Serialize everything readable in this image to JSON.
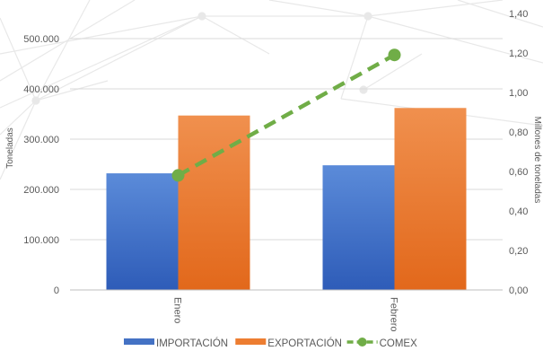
{
  "chart_data": {
    "type": "bar",
    "categories": [
      "Enero",
      "Febrero"
    ],
    "series": [
      {
        "name": "IMPORTACIÓN",
        "type": "bar",
        "axis": "left",
        "values": [
          232000,
          248000
        ],
        "color": "#4472C4"
      },
      {
        "name": "EXPORTACIÓN",
        "type": "bar",
        "axis": "left",
        "values": [
          347000,
          362000
        ],
        "color": "#ED7D31"
      },
      {
        "name": "COMEX",
        "type": "line",
        "axis": "right",
        "values": [
          0.58,
          1.19
        ],
        "color": "#70AD47",
        "line_style": "dashed"
      }
    ],
    "ylabel": "Toneladas",
    "y2label": "Millones de toneladas",
    "ylim": [
      0,
      500000
    ],
    "y_ticks": [
      "0",
      "100.000",
      "200.000",
      "300.000",
      "400.000",
      "500.000"
    ],
    "y2lim": [
      0,
      1.4
    ],
    "y2_ticks": [
      "0,00",
      "0,20",
      "0,40",
      "0,60",
      "0,80",
      "1,00",
      "1,20",
      "1,40"
    ],
    "grid": true,
    "legend_position": "bottom"
  }
}
